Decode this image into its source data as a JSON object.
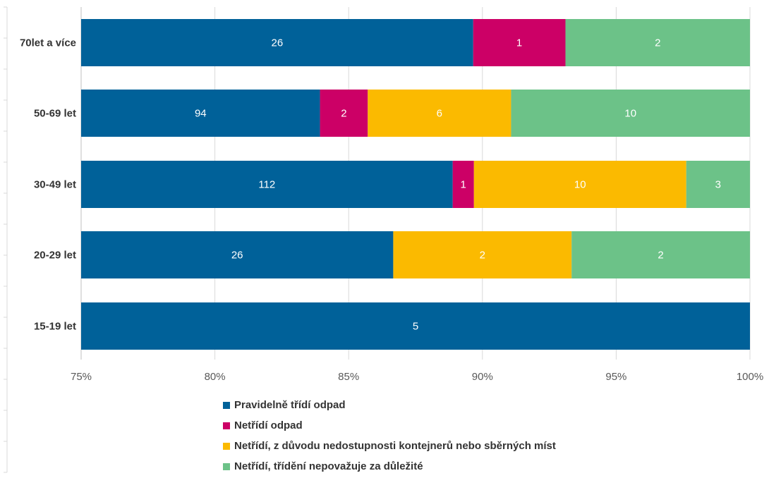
{
  "chart_data": {
    "type": "bar",
    "orientation": "horizontal",
    "stacked": "percent",
    "categories": [
      "70let a více",
      "50-69 let",
      "30-49 let",
      "20-29 let",
      "15-19 let"
    ],
    "series": [
      {
        "name": "Pravidelně třídí odpad",
        "color": "#006199",
        "values": [
          26,
          94,
          112,
          26,
          5
        ]
      },
      {
        "name": "Netřídí odpad",
        "color": "#CC0066",
        "values": [
          1,
          2,
          1,
          0,
          0
        ]
      },
      {
        "name": "Netřídí,  z důvodu nedostupnosti kontejnerů nebo sběrných míst",
        "color": "#FBBA00",
        "values": [
          0,
          6,
          10,
          2,
          0
        ]
      },
      {
        "name": "Netřídí, třídění nepovažuje za důležité",
        "color": "#6CC288",
        "values": [
          2,
          10,
          3,
          2,
          0
        ]
      }
    ],
    "xlim": [
      75,
      100
    ],
    "xticks": [
      "75%",
      "80%",
      "85%",
      "90%",
      "95%",
      "100%"
    ],
    "grid": true,
    "legend_position": "bottom"
  }
}
